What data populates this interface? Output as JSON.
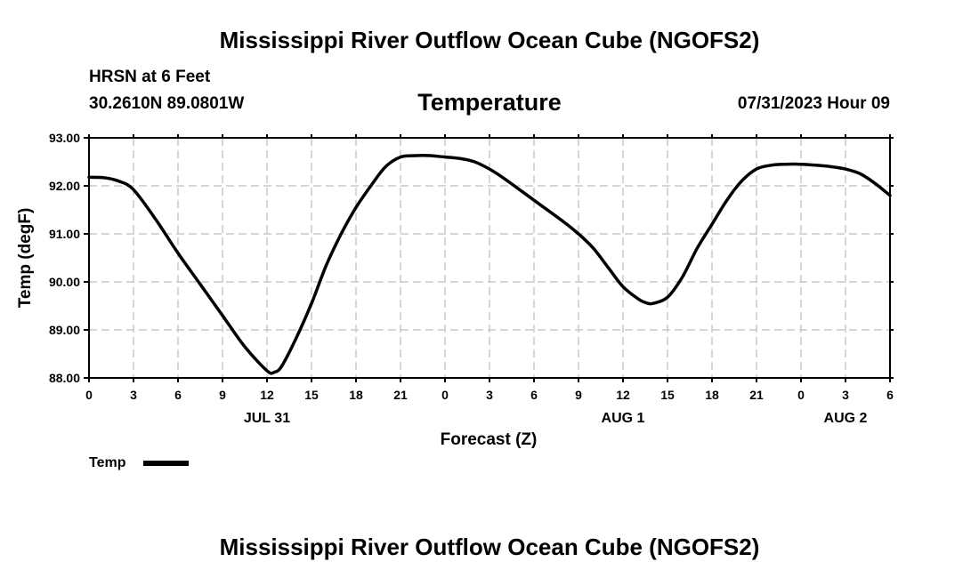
{
  "page": {
    "title_top": "Mississippi River Outflow Ocean Cube (NGOFS2)",
    "station": "HRSN at 6 Feet",
    "coords": "30.2610N  89.0801W",
    "valid_time": "07/31/2023 Hour 09",
    "title_bottom": "Mississippi River Outflow Ocean Cube (NGOFS2)"
  },
  "chart_data": {
    "type": "line",
    "title": "Temperature",
    "xlabel": "Forecast (Z)",
    "ylabel": "Temp (degF)",
    "ylim": [
      88.0,
      93.0
    ],
    "xlim": [
      0,
      54
    ],
    "grid": true,
    "y_ticks": [
      "88.00",
      "89.00",
      "90.00",
      "91.00",
      "92.00",
      "93.00"
    ],
    "x_ticks": [
      "0",
      "3",
      "6",
      "9",
      "12",
      "15",
      "18",
      "21",
      "0",
      "3",
      "6",
      "9",
      "12",
      "15",
      "18",
      "21",
      "0",
      "3",
      "6"
    ],
    "date_labels": [
      {
        "label": "JUL 31",
        "hour": 12
      },
      {
        "label": "AUG 1",
        "hour": 36
      },
      {
        "label": "AUG 2",
        "hour": 51
      }
    ],
    "legend": {
      "label": "Temp",
      "position": "bottom-left"
    },
    "series": [
      {
        "name": "Temp",
        "x": [
          0,
          1,
          2,
          3,
          4.5,
          6,
          7.5,
          9,
          10.5,
          12,
          12.5,
          13,
          14,
          15,
          16,
          17,
          18,
          19,
          20,
          21,
          22,
          23,
          24,
          25,
          26,
          27,
          28,
          30,
          32,
          33,
          34,
          35,
          36,
          37,
          37.5,
          38,
          39,
          40,
          41,
          42,
          43,
          44,
          45,
          46,
          47,
          48,
          49,
          50,
          51,
          52,
          53,
          54
        ],
        "values": [
          92.18,
          92.17,
          92.1,
          91.92,
          91.3,
          90.6,
          89.95,
          89.3,
          88.65,
          88.15,
          88.12,
          88.25,
          88.85,
          89.55,
          90.35,
          91.0,
          91.55,
          92.0,
          92.4,
          92.6,
          92.63,
          92.63,
          92.6,
          92.57,
          92.5,
          92.35,
          92.15,
          91.7,
          91.25,
          91.0,
          90.7,
          90.3,
          89.9,
          89.65,
          89.57,
          89.55,
          89.68,
          90.1,
          90.7,
          91.2,
          91.7,
          92.1,
          92.35,
          92.43,
          92.45,
          92.45,
          92.43,
          92.4,
          92.35,
          92.25,
          92.05,
          91.8
        ]
      }
    ]
  }
}
